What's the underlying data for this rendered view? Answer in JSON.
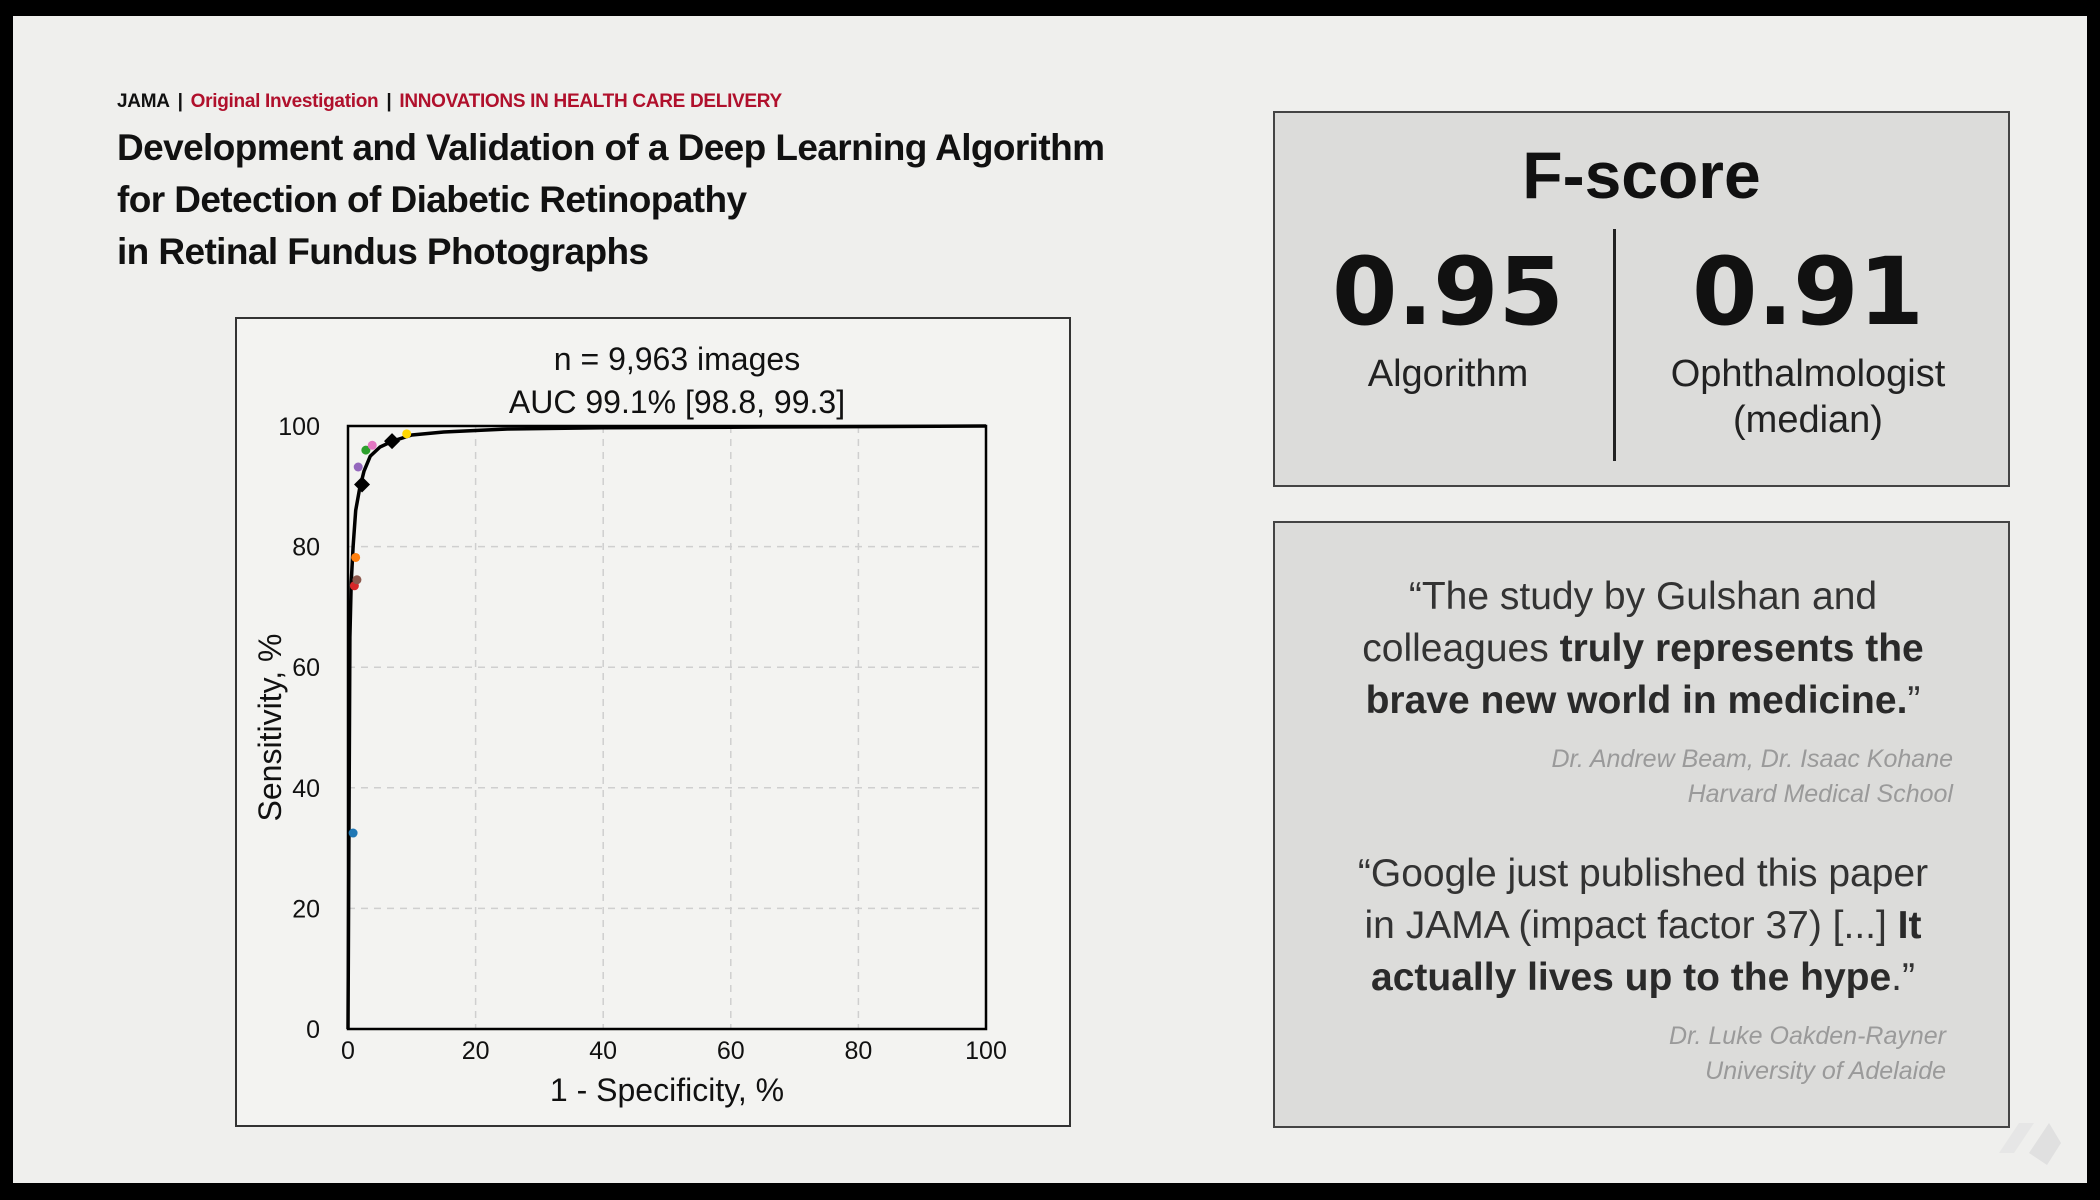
{
  "header": {
    "journal": "JAMA",
    "separator": "|",
    "section": "Original Investigation",
    "subsection": "INNOVATIONS IN HEALTH CARE DELIVERY"
  },
  "paper_title": [
    "Development and Validation of a Deep Learning Algorithm",
    "for Detection of Diabetic Retinopathy",
    "in Retinal Fundus Photographs"
  ],
  "fscore": {
    "title": "F-score",
    "algorithm": {
      "value": "0.95",
      "label": "Algorithm"
    },
    "ophthalmologist": {
      "value": "0.91",
      "label_line1": "Ophthalmologist",
      "label_line2": "(median)"
    }
  },
  "quotes": [
    {
      "line1": "“The study by Gulshan and",
      "line2_plain": "colleagues ",
      "line2_bold": "truly represents the",
      "line3_bold": "brave new world in medicine.",
      "line3_plain": "”",
      "author": "Dr. Andrew  Beam, Dr. Isaac Kohane",
      "affiliation": "Harvard Medical School"
    },
    {
      "line1": "“Google just published this paper",
      "line2_plain": "in JAMA (impact factor 37) [...] ",
      "line2_bold": "It",
      "line3_bold": "actually lives up to the hype",
      "line3_plain": ".”",
      "author": "Dr. Luke Oakden-Rayner",
      "affiliation": "University of Adelaide"
    }
  ],
  "chart_data": {
    "type": "line",
    "title": "n = 9,963 images",
    "subtitle": "AUC 99.1% [98.8, 99.3]",
    "xlabel": "1 - Specificity, %",
    "ylabel": "Sensitivity, %",
    "xlim": [
      0,
      100
    ],
    "ylim": [
      0,
      100
    ],
    "xticks": [
      0,
      20,
      40,
      60,
      80,
      100
    ],
    "yticks": [
      0,
      20,
      40,
      60,
      80,
      100
    ],
    "grid": true,
    "series": [
      {
        "style": "curve",
        "color": "#000000",
        "x": [
          0,
          0.3,
          0.5,
          0.8,
          1.2,
          1.8,
          2.5,
          3.5,
          5,
          7,
          10,
          15,
          25,
          40,
          60,
          80,
          100
        ],
        "y": [
          0,
          65,
          74,
          80,
          86,
          89.5,
          92.5,
          95,
          96.5,
          97.5,
          98.5,
          99,
          99.5,
          99.7,
          99.8,
          99.9,
          100
        ]
      }
    ],
    "operating_points": [
      {
        "marker": "diamond",
        "color": "#000000",
        "x": [
          2.2,
          6.9
        ],
        "y": [
          90.3,
          97.5
        ]
      }
    ],
    "ophthalmologist_points": [
      {
        "color": "#1f77b4",
        "x": 0.8,
        "y": 32.5
      },
      {
        "color": "#d62728",
        "x": 1.0,
        "y": 73.5
      },
      {
        "color": "#8c564b",
        "x": 1.4,
        "y": 74.5
      },
      {
        "color": "#ff7f0e",
        "x": 1.2,
        "y": 78.2
      },
      {
        "color": "#9467bd",
        "x": 1.6,
        "y": 93.2
      },
      {
        "color": "#2ca02c",
        "x": 2.8,
        "y": 96.0
      },
      {
        "color": "#e377c2",
        "x": 3.8,
        "y": 96.8
      },
      {
        "color": "#ffd700",
        "x": 9.2,
        "y": 98.7
      }
    ]
  }
}
